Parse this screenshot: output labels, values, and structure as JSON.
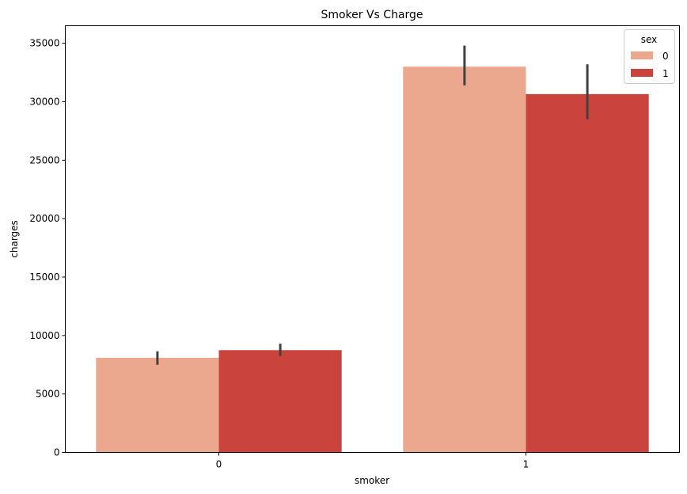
{
  "chart_data": {
    "type": "bar",
    "title": "Smoker Vs Charge",
    "xlabel": "smoker",
    "ylabel": "charges",
    "categories": [
      "0",
      "1"
    ],
    "ylim": [
      0,
      36500
    ],
    "yticks": [
      0,
      5000,
      10000,
      15000,
      20000,
      25000,
      30000,
      35000
    ],
    "ytick_labels": [
      "0",
      "5000",
      "10000",
      "15000",
      "20000",
      "25000",
      "30000",
      "35000"
    ],
    "legend": {
      "title": "sex",
      "position": "top-right"
    },
    "series": [
      {
        "name": "0",
        "color": "#eca78f",
        "values": [
          8100,
          33000
        ],
        "error_low": [
          7500,
          31400
        ],
        "error_high": [
          8650,
          34800
        ]
      },
      {
        "name": "1",
        "color": "#ca443d",
        "values": [
          8750,
          30650
        ],
        "error_low": [
          8250,
          28500
        ],
        "error_high": [
          9300,
          33200
        ]
      }
    ],
    "error_bar_color": "#404040",
    "grid": false
  }
}
